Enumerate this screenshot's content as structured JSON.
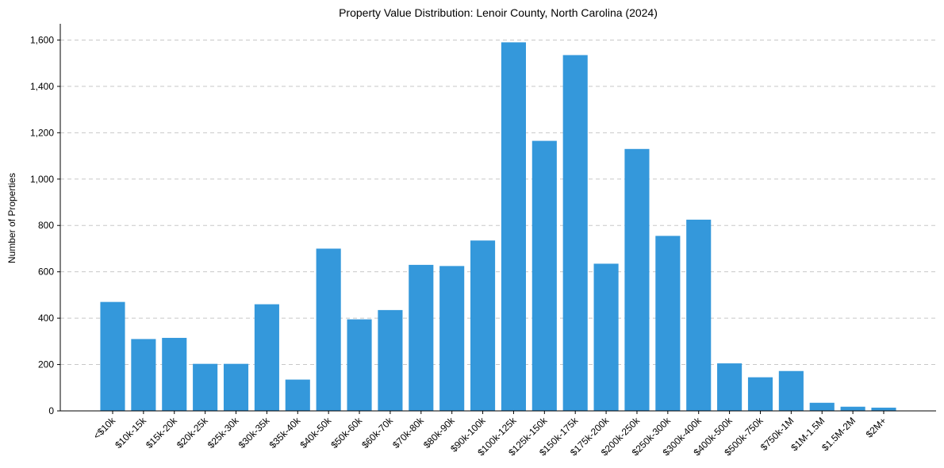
{
  "chart_data": {
    "type": "bar",
    "title": "Property Value Distribution: Lenoir County, North Carolina (2024)",
    "xlabel": "",
    "ylabel": "Number of Properties",
    "ylim": [
      0,
      1670
    ],
    "yticks": [
      0,
      200,
      400,
      600,
      800,
      1000,
      1200,
      1400,
      1600
    ],
    "ytick_labels": [
      "0",
      "200",
      "400",
      "600",
      "800",
      "1,000",
      "1,200",
      "1,400",
      "1,600"
    ],
    "grid": "horizontal dashed",
    "bar_color": "#3498db",
    "categories": [
      "<$10k",
      "$10k-15k",
      "$15k-20k",
      "$20k-25k",
      "$25k-30k",
      "$30k-35k",
      "$35k-40k",
      "$40k-50k",
      "$50k-60k",
      "$60k-70k",
      "$70k-80k",
      "$80k-90k",
      "$90k-100k",
      "$100k-125k",
      "$125k-150k",
      "$150k-175k",
      "$175k-200k",
      "$200k-250k",
      "$250k-300k",
      "$300k-400k",
      "$400k-500k",
      "$500k-750k",
      "$750k-1M",
      "$1M-1.5M",
      "$1.5M-2M",
      "$2M+"
    ],
    "values": [
      470,
      310,
      315,
      203,
      203,
      460,
      135,
      700,
      395,
      435,
      630,
      625,
      735,
      1590,
      1165,
      1535,
      635,
      1130,
      755,
      825,
      205,
      145,
      172,
      35,
      18,
      14
    ]
  }
}
